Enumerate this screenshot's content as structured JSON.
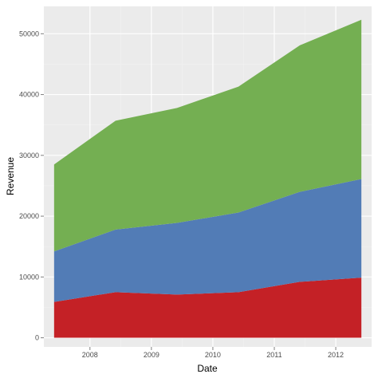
{
  "chart_data": {
    "type": "area",
    "stacked": true,
    "title": "",
    "xlabel": "Date",
    "ylabel": "Revenue",
    "x": [
      "2007-06",
      "2008-06",
      "2009-06",
      "2010-06",
      "2011-06",
      "2012-06"
    ],
    "x_ticks": [
      "2008",
      "2009",
      "2010",
      "2011",
      "2012"
    ],
    "y_ticks": [
      "0",
      "10000",
      "20000",
      "30000",
      "40000",
      "50000"
    ],
    "ylim": [
      -1500,
      54500
    ],
    "xlim": [
      "2007-04",
      "2012-08"
    ],
    "grid": true,
    "legend": "none",
    "series": [
      {
        "color": "#c42126",
        "values": [
          5900,
          7500,
          7100,
          7500,
          9200,
          9900
        ]
      },
      {
        "color": "#527cb6",
        "values": [
          8300,
          10300,
          11800,
          13100,
          14800,
          16200
        ]
      },
      {
        "color": "#74af52",
        "values": [
          14300,
          17900,
          18900,
          20700,
          24100,
          26200
        ]
      }
    ],
    "totals": [
      28500,
      35700,
      37800,
      41300,
      48100,
      52300
    ]
  },
  "colors": {
    "panel": "#ebebeb",
    "grid_major": "#ffffff",
    "grid_minor": "#f2f2f2"
  }
}
